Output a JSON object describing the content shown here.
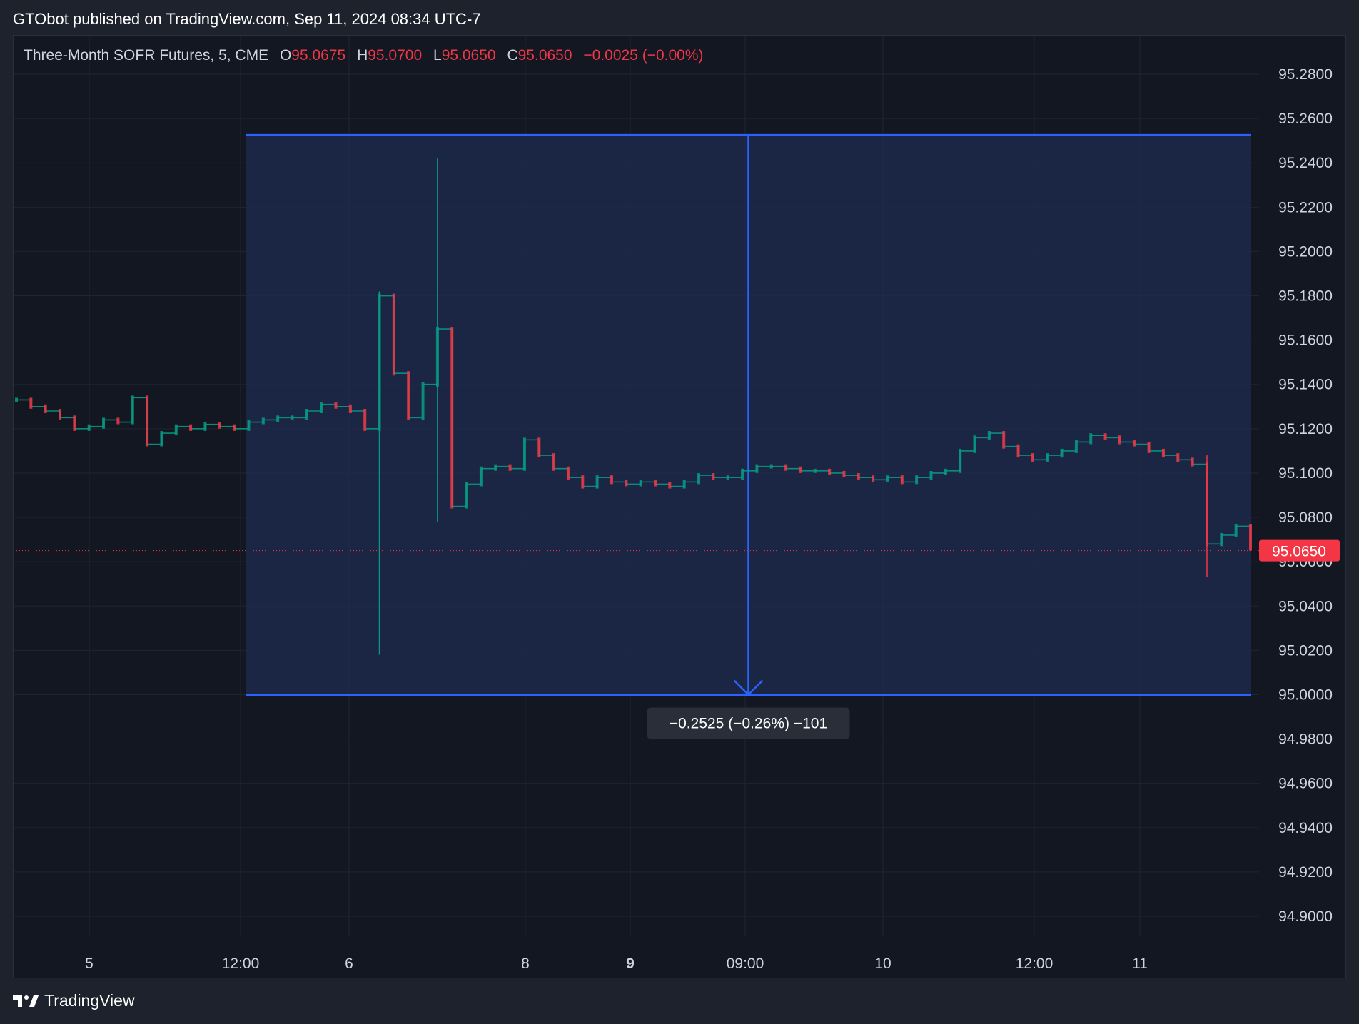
{
  "header": {
    "published": "GTObot published on TradingView.com, Sep 11, 2024 08:34 UTC-7"
  },
  "legend": {
    "symbol": "Three-Month SOFR Futures, 5, CME",
    "o_label": "O",
    "o": "95.0675",
    "h_label": "H",
    "h": "95.0700",
    "l_label": "L",
    "l": "95.0650",
    "c_label": "C",
    "c": "95.0650",
    "change": "−0.0025 (−0.00%)"
  },
  "measure": {
    "label": "−0.2525 (−0.26%) −101"
  },
  "current_price": "95.0650",
  "footer": {
    "brand": "TradingView"
  },
  "colors": {
    "background": "#131722",
    "up": "#089981",
    "down": "#f23645",
    "measure_line": "#2962ff",
    "measure_fill": "#1e2b4d",
    "grid": "#1f2430"
  },
  "chart_data": {
    "type": "candlestick",
    "title": "Three-Month SOFR Futures, 5, CME",
    "x_ticks": [
      "5",
      "12:00",
      "6",
      "8",
      "9",
      "09:00",
      "10",
      "12:00",
      "11"
    ],
    "y_ticks": [
      "95.2800",
      "95.2600",
      "95.2400",
      "95.2200",
      "95.2000",
      "95.1800",
      "95.1600",
      "95.1400",
      "95.1200",
      "95.1000",
      "95.0800",
      "95.0600",
      "95.0400",
      "95.0200",
      "95.0000",
      "94.9800",
      "94.9600",
      "94.9400",
      "94.9200",
      "94.9000"
    ],
    "ylim": [
      94.88,
      95.29
    ],
    "series": [
      {
        "values": [
          [
            0,
            95.133
          ],
          [
            1,
            95.13
          ],
          [
            2,
            95.128
          ],
          [
            3,
            95.125
          ],
          [
            4,
            95.12
          ],
          [
            5,
            95.121
          ],
          [
            6,
            95.124
          ],
          [
            7,
            95.123
          ],
          [
            8,
            95.134
          ],
          [
            9,
            95.113
          ],
          [
            10,
            95.118
          ],
          [
            11,
            95.121
          ],
          [
            12,
            95.12
          ],
          [
            13,
            95.122
          ],
          [
            14,
            95.121
          ],
          [
            15,
            95.12
          ],
          [
            16,
            95.123
          ],
          [
            17,
            95.124
          ],
          [
            18,
            95.125
          ],
          [
            19,
            95.125
          ],
          [
            20,
            95.128
          ],
          [
            21,
            95.131
          ],
          [
            22,
            95.13
          ],
          [
            23,
            95.128
          ],
          [
            24,
            95.12
          ],
          [
            25,
            95.18
          ],
          [
            26,
            95.145
          ],
          [
            27,
            95.125
          ],
          [
            28,
            95.14
          ],
          [
            29,
            95.165
          ],
          [
            30,
            95.085
          ],
          [
            31,
            95.095
          ],
          [
            32,
            95.102
          ],
          [
            33,
            95.103
          ],
          [
            34,
            95.102
          ],
          [
            35,
            95.115
          ],
          [
            36,
            95.108
          ],
          [
            37,
            95.102
          ],
          [
            38,
            95.098
          ],
          [
            39,
            95.094
          ],
          [
            40,
            95.098
          ],
          [
            41,
            95.096
          ],
          [
            42,
            95.095
          ],
          [
            43,
            95.096
          ],
          [
            44,
            95.095
          ],
          [
            45,
            95.094
          ],
          [
            46,
            95.096
          ],
          [
            47,
            95.099
          ],
          [
            48,
            95.098
          ],
          [
            49,
            95.098
          ],
          [
            50,
            95.101
          ],
          [
            51,
            95.103
          ],
          [
            52,
            95.103
          ],
          [
            53,
            95.102
          ],
          [
            54,
            95.101
          ],
          [
            55,
            95.101
          ],
          [
            56,
            95.1
          ],
          [
            57,
            95.099
          ],
          [
            58,
            95.098
          ],
          [
            59,
            95.097
          ],
          [
            60,
            95.098
          ],
          [
            61,
            95.096
          ],
          [
            62,
            95.098
          ],
          [
            63,
            95.1
          ],
          [
            64,
            95.101
          ],
          [
            65,
            95.11
          ],
          [
            66,
            95.116
          ],
          [
            67,
            95.118
          ],
          [
            68,
            95.112
          ],
          [
            69,
            95.108
          ],
          [
            70,
            95.106
          ],
          [
            71,
            95.108
          ],
          [
            72,
            95.11
          ],
          [
            73,
            95.114
          ],
          [
            74,
            95.117
          ],
          [
            75,
            95.116
          ],
          [
            76,
            95.114
          ],
          [
            77,
            95.113
          ],
          [
            78,
            95.11
          ],
          [
            79,
            95.108
          ],
          [
            80,
            95.106
          ],
          [
            81,
            95.104
          ],
          [
            82,
            95.068
          ],
          [
            83,
            95.072
          ],
          [
            84,
            95.076
          ],
          [
            85,
            95.066
          ]
        ]
      }
    ],
    "measure_range": {
      "from": 95.2525,
      "to": 95.0,
      "change": "−0.2525",
      "percent": "−0.26%",
      "bars": "−101"
    }
  }
}
